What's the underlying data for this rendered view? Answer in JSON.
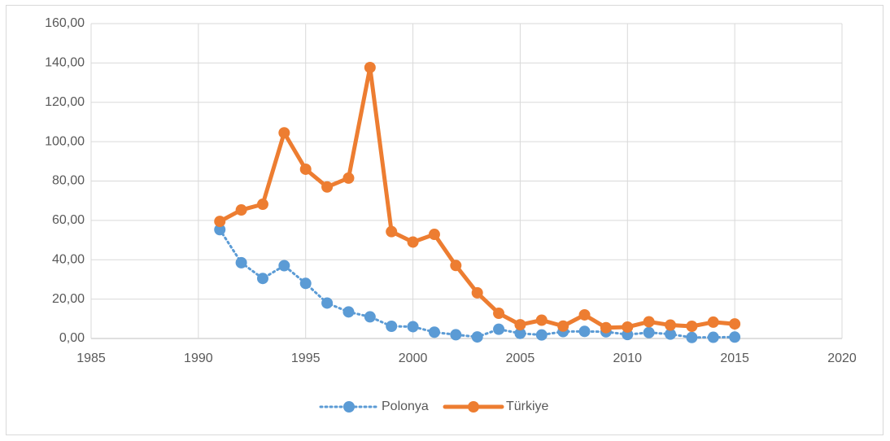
{
  "chart_data": {
    "type": "line",
    "x": [
      1991,
      1992,
      1993,
      1994,
      1995,
      1996,
      1997,
      1998,
      1999,
      2000,
      2001,
      2002,
      2003,
      2004,
      2005,
      2006,
      2007,
      2008,
      2009,
      2010,
      2011,
      2012,
      2013,
      2014,
      2015
    ],
    "series": [
      {
        "name": "Polonya",
        "color": "#5b9bd5",
        "style": "dotted",
        "values": [
          55.3,
          38.5,
          30.5,
          37,
          28,
          18,
          13.5,
          11,
          6.2,
          6,
          3.2,
          1.9,
          0.8,
          4.7,
          2.6,
          1.8,
          3.5,
          3.6,
          3.4,
          2.0,
          3.0,
          2.2,
          0.5,
          0.6,
          0.7
        ]
      },
      {
        "name": "Türkiye",
        "color": "#ed7d31",
        "style": "solid",
        "values": [
          59.5,
          65.3,
          68.2,
          104.5,
          86,
          77,
          81.5,
          137.7,
          54.3,
          49,
          52.9,
          37.1,
          23.2,
          12.8,
          7.0,
          9.3,
          6.3,
          12,
          5.5,
          5.8,
          8.5,
          6.8,
          6.2,
          8.3,
          7.4
        ]
      }
    ],
    "xlim": [
      1985,
      2020
    ],
    "xticks": [
      1985,
      1990,
      1995,
      2000,
      2005,
      2010,
      2015,
      2020
    ],
    "ylim": [
      0,
      160
    ],
    "yticks": [
      {
        "value": 0,
        "label": "0,00"
      },
      {
        "value": 20,
        "label": "20,00"
      },
      {
        "value": 40,
        "label": "40,00"
      },
      {
        "value": 60,
        "label": "60,00"
      },
      {
        "value": 80,
        "label": "80,00"
      },
      {
        "value": 100,
        "label": "100,00"
      },
      {
        "value": 120,
        "label": "120,00"
      },
      {
        "value": 140,
        "label": "140,00"
      },
      {
        "value": 160,
        "label": "160,00"
      }
    ],
    "grid": true,
    "legend": "bottom"
  }
}
